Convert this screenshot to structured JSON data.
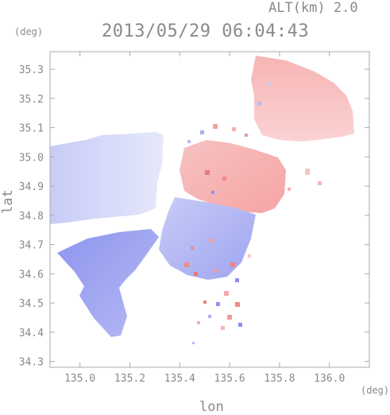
{
  "header": {
    "altitude": "ALT(km) 2.0",
    "timestamp": "2013/05/29 06:04:43"
  },
  "axes": {
    "lat_unit": "(deg)",
    "lon_unit": "(deg)",
    "ylabel": "lat",
    "xlabel": "lon"
  },
  "chart_data": {
    "type": "heatmap",
    "xlabel": "lon",
    "ylabel": "lat",
    "xlim": [
      134.88,
      136.16
    ],
    "ylim": [
      34.28,
      35.36
    ],
    "x_ticks": [
      135.0,
      135.2,
      135.4,
      135.6,
      135.8,
      136.0
    ],
    "x_tick_labels": [
      "135.0",
      "135.2",
      "135.4",
      "135.6",
      "135.8",
      "136.0"
    ],
    "y_ticks": [
      34.3,
      34.4,
      34.5,
      34.6,
      34.7,
      34.8,
      34.9,
      35.0,
      35.1,
      35.2,
      35.3
    ],
    "y_tick_labels": [
      "34.3",
      "34.4",
      "34.5",
      "34.6",
      "34.7",
      "34.8",
      "34.9",
      "35.0",
      "35.1",
      "35.2",
      "35.3"
    ],
    "colors": {
      "positive": "#f08a8a",
      "negative": "#8a90f0",
      "frame": "#aaaaaa"
    }
  }
}
